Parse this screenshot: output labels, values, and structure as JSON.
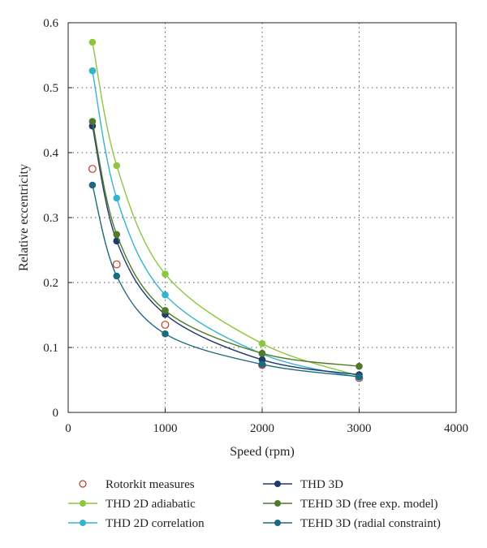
{
  "chart_data": {
    "type": "line",
    "title": "",
    "xlabel": "Speed (rpm)",
    "ylabel": "Relative eccentricity",
    "xlim": [
      0,
      4000
    ],
    "ylim": [
      0,
      0.6
    ],
    "xticks": [
      0,
      1000,
      2000,
      3000,
      4000
    ],
    "yticks": [
      0,
      0.1,
      0.2,
      0.3,
      0.4,
      0.5,
      0.6
    ],
    "xtick_labels": [
      "0",
      "1000",
      "2000",
      "3000",
      "4000"
    ],
    "ytick_labels": [
      "0",
      "0.1",
      "0.2",
      "0.3",
      "0.4",
      "0.5",
      "0.6"
    ],
    "grid": "dotted, x and y",
    "legend_position": "bottom, two columns",
    "series": [
      {
        "name": "Rotorkit measures",
        "style": "open-circle",
        "color": "#c0392b",
        "x": [
          250,
          500,
          1000,
          2000,
          3000
        ],
        "y": [
          0.375,
          0.228,
          0.135,
          0.073,
          0.053
        ]
      },
      {
        "name": "THD 2D adiabatic",
        "style": "line-marker",
        "color": "#8dc63f",
        "x": [
          250,
          500,
          1000,
          2000,
          3000
        ],
        "y": [
          0.57,
          0.38,
          0.213,
          0.106,
          0.056
        ]
      },
      {
        "name": "THD 2D correlation",
        "style": "line-marker",
        "color": "#35b3cf",
        "x": [
          250,
          500,
          1000,
          2000,
          3000
        ],
        "y": [
          0.526,
          0.33,
          0.181,
          0.09,
          0.054
        ]
      },
      {
        "name": "THD 3D",
        "style": "line-marker",
        "color": "#1f3a6e",
        "x": [
          250,
          500,
          1000,
          2000,
          3000
        ],
        "y": [
          0.441,
          0.264,
          0.151,
          0.081,
          0.058
        ]
      },
      {
        "name": "TEHD 3D (free exp. model)",
        "style": "line-marker",
        "color": "#4f7a28",
        "x": [
          250,
          500,
          1000,
          2000,
          3000
        ],
        "y": [
          0.448,
          0.274,
          0.157,
          0.091,
          0.071
        ]
      },
      {
        "name": "TEHD 3D (radial constraint)",
        "style": "line-marker",
        "color": "#1b6a7f",
        "x": [
          250,
          500,
          1000,
          2000,
          3000
        ],
        "y": [
          0.35,
          0.21,
          0.121,
          0.074,
          0.055
        ]
      }
    ]
  }
}
